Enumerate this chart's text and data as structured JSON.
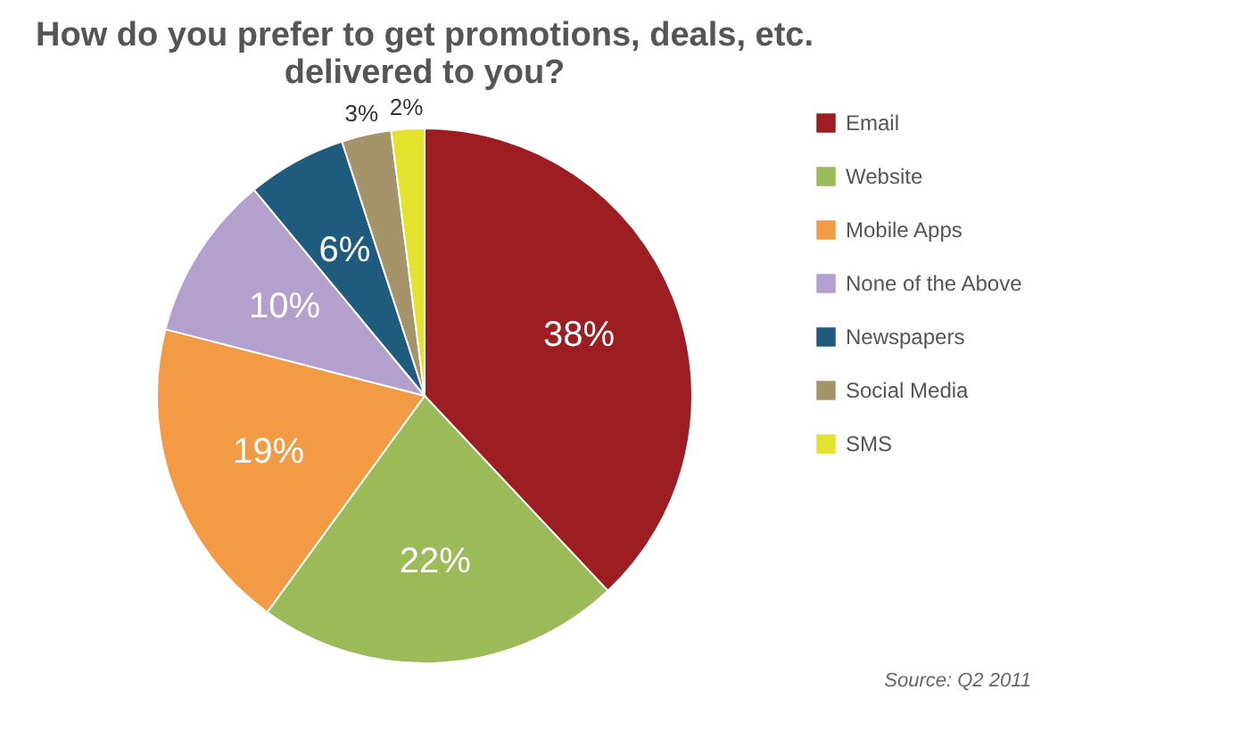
{
  "chart_data": {
    "type": "pie",
    "title": [
      "How do you prefer to get promotions, deals, etc.",
      "delivered to you?"
    ],
    "categories": [
      "Email",
      "Website",
      "Mobile Apps",
      "None of the Above",
      "Newspapers",
      "Social Media",
      "SMS"
    ],
    "values": [
      38,
      22,
      19,
      10,
      6,
      3,
      2
    ],
    "colors": [
      "#9c1d22",
      "#9bbb59",
      "#f39a45",
      "#b4a0cc",
      "#1f5b7d",
      "#a59469",
      "#e3e32e"
    ],
    "value_labels": [
      "38%",
      "22%",
      "19%",
      "10%",
      "6%",
      "3%",
      "2%"
    ],
    "legend": "right",
    "annotations": [
      "Source: Q2 2011"
    ]
  }
}
